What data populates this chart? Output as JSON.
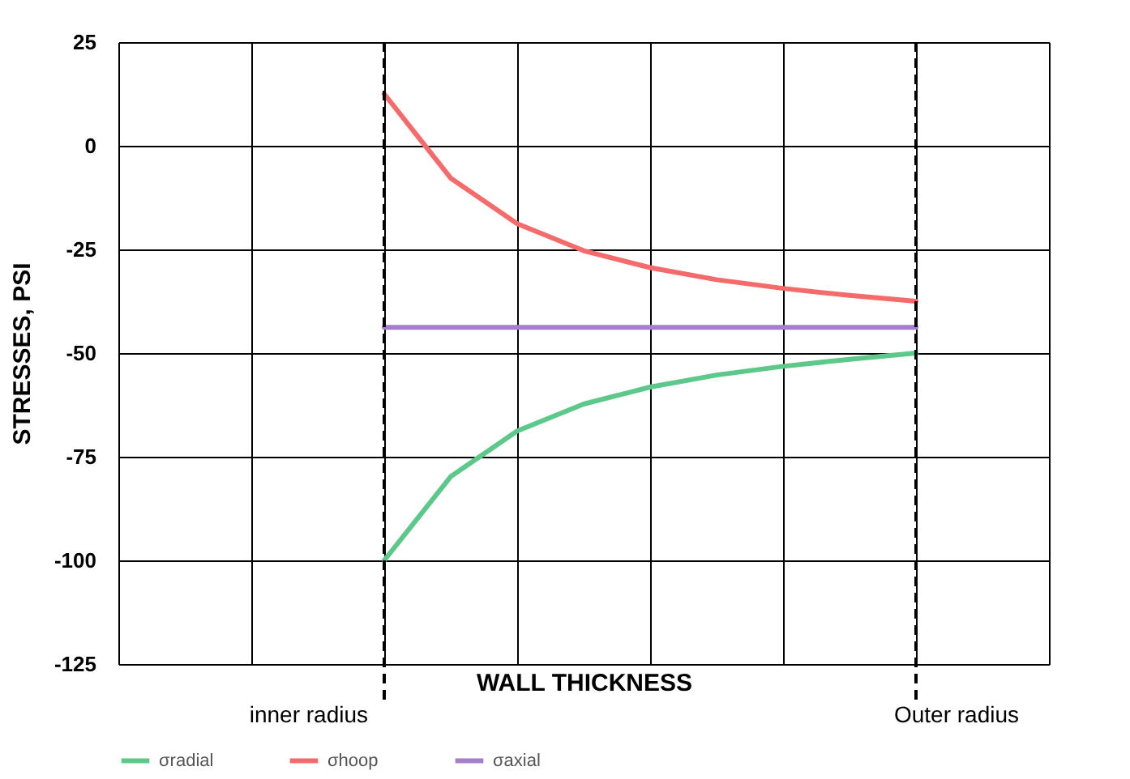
{
  "chart_data": {
    "type": "line",
    "xlabel": "WALL THICKNESS",
    "ylabel": "STRESSES, PSI",
    "categories": [
      null,
      null,
      null,
      null,
      null,
      null,
      null,
      null,
      null,
      null,
      null,
      null,
      null,
      null,
      null
    ],
    "series": [
      {
        "name": "σradial",
        "color": "#5cc98a",
        "values": [
          null,
          null,
          null,
          null,
          -100,
          -79.8,
          -68.8,
          -62.3,
          -58.2,
          -55.3,
          -53.2,
          -51.5,
          -50,
          null,
          null
        ]
      },
      {
        "name": "σhoop",
        "color": "#f56b6b",
        "values": [
          null,
          null,
          null,
          null,
          12.5,
          -7.8,
          -18.8,
          -25.3,
          -29.4,
          -32.3,
          -34.4,
          -36.1,
          -37.5,
          null,
          null
        ]
      },
      {
        "name": "σaxial",
        "color": "#a57fcb",
        "values": [
          null,
          null,
          null,
          null,
          -43.8,
          -43.8,
          -43.8,
          -43.8,
          -43.8,
          -43.8,
          -43.8,
          -43.8,
          -43.8,
          null,
          null
        ]
      }
    ],
    "ylim": [
      -125,
      25
    ],
    "yticks": [
      -125,
      -100,
      -75,
      -50,
      -25,
      0,
      25
    ],
    "tick_labels": "y",
    "grid": true,
    "legend": "bottom",
    "marker": "none",
    "line_style": "solid",
    "annotations": [
      "inner radius",
      "Outer radius"
    ]
  }
}
